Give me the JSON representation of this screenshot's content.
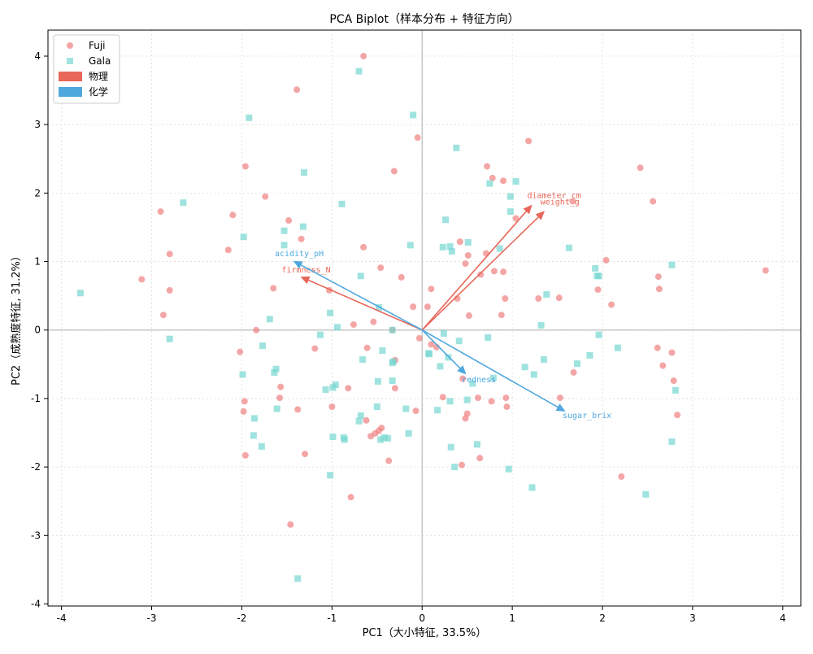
{
  "chart_data": {
    "type": "scatter",
    "title": "PCA Biplot（样本分布 + 特征方向）",
    "xlabel": "PC1（大小特征, 33.5%）",
    "ylabel": "PC2（成熟度特征, 31.2%）",
    "xlim": [
      -4.15,
      4.2
    ],
    "ylim": [
      -4.03,
      4.38
    ],
    "x_ticks": [
      -4,
      -3,
      -2,
      -1,
      0,
      1,
      2,
      3,
      4
    ],
    "y_ticks": [
      -4,
      -3,
      -2,
      -1,
      0,
      1,
      2,
      3,
      4
    ],
    "grid": true,
    "legend_position": "upper left",
    "colors": {
      "fuji": "#f08080",
      "gala": "#76d7d1",
      "physical": "#e8675a",
      "chemical": "#4ea8de",
      "zero_line": "#bbbbbb"
    },
    "legend": [
      {
        "label": "Fuji",
        "kind": "circle",
        "color_key": "fuji"
      },
      {
        "label": "Gala",
        "kind": "square",
        "color_key": "gala"
      },
      {
        "label": "物理",
        "kind": "patch",
        "color_key": "physical"
      },
      {
        "label": "化学",
        "kind": "patch",
        "color_key": "chemical"
      }
    ],
    "series": [
      {
        "name": "Fuji",
        "marker": "circle",
        "color_key": "fuji",
        "points": [
          [
            -0.65,
            4.0
          ],
          [
            -1.39,
            3.51
          ],
          [
            -0.05,
            2.81
          ],
          [
            -0.31,
            2.32
          ],
          [
            -1.96,
            2.39
          ],
          [
            -1.74,
            1.95
          ],
          [
            -2.1,
            1.68
          ],
          [
            -2.9,
            1.73
          ],
          [
            -2.8,
            1.11
          ],
          [
            -2.15,
            1.17
          ],
          [
            -3.11,
            0.74
          ],
          [
            -2.8,
            0.58
          ],
          [
            -2.87,
            0.22
          ],
          [
            -1.84,
            0.0
          ],
          [
            -2.02,
            -0.32
          ],
          [
            -1.97,
            -1.04
          ],
          [
            -1.98,
            -1.19
          ],
          [
            -1.96,
            -1.83
          ],
          [
            -1.46,
            -2.84
          ],
          [
            -1.3,
            -1.81
          ],
          [
            -1.38,
            -1.16
          ],
          [
            -1.57,
            -0.83
          ],
          [
            -1.58,
            -0.99
          ],
          [
            -1.19,
            -0.27
          ],
          [
            -1.34,
            1.33
          ],
          [
            -1.48,
            1.6
          ],
          [
            -1.65,
            0.61
          ],
          [
            -1.03,
            0.58
          ],
          [
            -0.76,
            0.08
          ],
          [
            -0.65,
            1.21
          ],
          [
            -0.46,
            0.91
          ],
          [
            -0.23,
            0.77
          ],
          [
            -0.1,
            0.34
          ],
          [
            0.06,
            0.34
          ],
          [
            0.1,
            0.6
          ],
          [
            -0.54,
            0.12
          ],
          [
            -0.33,
            0.0
          ],
          [
            -0.61,
            -0.26
          ],
          [
            -0.82,
            -0.85
          ],
          [
            -1.0,
            -1.12
          ],
          [
            -0.62,
            -1.32
          ],
          [
            -0.48,
            -1.47
          ],
          [
            -0.52,
            -1.51
          ],
          [
            -0.57,
            -1.55
          ],
          [
            -0.45,
            -1.43
          ],
          [
            -0.37,
            -1.91
          ],
          [
            -0.79,
            -2.44
          ],
          [
            -0.3,
            -0.85
          ],
          [
            -0.3,
            -0.44
          ],
          [
            -0.07,
            -1.18
          ],
          [
            -0.03,
            -0.12
          ],
          [
            0.1,
            -0.21
          ],
          [
            0.16,
            -0.25
          ],
          [
            0.23,
            -0.98
          ],
          [
            0.45,
            -0.71
          ],
          [
            0.5,
            -1.22
          ],
          [
            0.48,
            -1.29
          ],
          [
            0.62,
            -0.99
          ],
          [
            0.44,
            -1.97
          ],
          [
            0.64,
            -1.87
          ],
          [
            0.77,
            -1.04
          ],
          [
            0.93,
            -0.99
          ],
          [
            0.94,
            -1.12
          ],
          [
            0.39,
            0.46
          ],
          [
            0.52,
            0.21
          ],
          [
            0.88,
            0.22
          ],
          [
            0.65,
            0.81
          ],
          [
            0.71,
            1.12
          ],
          [
            0.8,
            0.86
          ],
          [
            0.9,
            0.85
          ],
          [
            0.92,
            0.46
          ],
          [
            0.42,
            1.29
          ],
          [
            0.51,
            1.09
          ],
          [
            0.48,
            0.97
          ],
          [
            0.72,
            2.39
          ],
          [
            0.78,
            2.22
          ],
          [
            0.9,
            2.18
          ],
          [
            1.18,
            2.76
          ],
          [
            1.04,
            1.63
          ],
          [
            1.29,
            0.46
          ],
          [
            1.52,
            0.47
          ],
          [
            1.53,
            -0.99
          ],
          [
            1.68,
            -0.62
          ],
          [
            1.95,
            0.59
          ],
          [
            2.04,
            1.02
          ],
          [
            2.1,
            0.37
          ],
          [
            2.42,
            2.37
          ],
          [
            2.56,
            1.88
          ],
          [
            2.62,
            0.78
          ],
          [
            2.63,
            0.6
          ],
          [
            2.61,
            -0.26
          ],
          [
            2.67,
            -0.52
          ],
          [
            2.77,
            -0.33
          ],
          [
            2.79,
            -0.74
          ],
          [
            2.83,
            -1.24
          ],
          [
            2.21,
            -2.14
          ],
          [
            3.81,
            0.87
          ],
          [
            1.67,
            1.88
          ]
        ]
      },
      {
        "name": "Gala",
        "marker": "square",
        "color_key": "gala",
        "points": [
          [
            -0.7,
            3.78
          ],
          [
            -0.1,
            3.14
          ],
          [
            -1.92,
            3.1
          ],
          [
            -1.31,
            2.3
          ],
          [
            -2.65,
            1.86
          ],
          [
            -0.89,
            1.84
          ],
          [
            -1.53,
            1.45
          ],
          [
            -1.32,
            1.51
          ],
          [
            -1.98,
            1.36
          ],
          [
            -1.53,
            1.24
          ],
          [
            -3.79,
            0.54
          ],
          [
            -2.8,
            -0.13
          ],
          [
            -1.69,
            0.16
          ],
          [
            -1.77,
            -0.23
          ],
          [
            -1.62,
            -0.57
          ],
          [
            -1.64,
            -0.62
          ],
          [
            -1.99,
            -0.65
          ],
          [
            -1.13,
            -0.07
          ],
          [
            -1.02,
            0.25
          ],
          [
            -0.94,
            0.04
          ],
          [
            -0.96,
            -0.8
          ],
          [
            -0.99,
            -0.84
          ],
          [
            -1.07,
            -0.87
          ],
          [
            -1.61,
            -1.15
          ],
          [
            -1.86,
            -1.29
          ],
          [
            -1.87,
            -1.54
          ],
          [
            -1.78,
            -1.7
          ],
          [
            -1.38,
            -3.63
          ],
          [
            -1.02,
            -2.12
          ],
          [
            -0.99,
            -1.56
          ],
          [
            -0.87,
            -1.57
          ],
          [
            -0.86,
            -1.6
          ],
          [
            -0.68,
            -1.25
          ],
          [
            -0.7,
            -1.33
          ],
          [
            -0.42,
            -1.57
          ],
          [
            -0.46,
            -1.6
          ],
          [
            -0.38,
            -1.58
          ],
          [
            -0.5,
            -1.12
          ],
          [
            -0.49,
            -0.75
          ],
          [
            -0.33,
            -0.74
          ],
          [
            -0.33,
            -0.48
          ],
          [
            -0.32,
            -0.46
          ],
          [
            -0.66,
            -0.43
          ],
          [
            -0.44,
            -0.3
          ],
          [
            -0.33,
            0.0
          ],
          [
            -0.48,
            0.33
          ],
          [
            -0.68,
            0.79
          ],
          [
            -0.13,
            1.24
          ],
          [
            -0.18,
            -1.15
          ],
          [
            -0.15,
            -1.51
          ],
          [
            0.07,
            -0.34
          ],
          [
            0.08,
            -0.35
          ],
          [
            0.2,
            -0.53
          ],
          [
            0.24,
            -0.05
          ],
          [
            0.29,
            -0.4
          ],
          [
            0.31,
            -1.04
          ],
          [
            0.17,
            -1.17
          ],
          [
            0.5,
            -1.02
          ],
          [
            0.56,
            -0.78
          ],
          [
            0.41,
            -0.16
          ],
          [
            0.38,
            2.66
          ],
          [
            0.26,
            1.61
          ],
          [
            0.31,
            1.22
          ],
          [
            0.23,
            1.21
          ],
          [
            0.33,
            1.15
          ],
          [
            0.51,
            1.28
          ],
          [
            0.73,
            -0.11
          ],
          [
            0.79,
            -0.7
          ],
          [
            0.61,
            -1.67
          ],
          [
            0.36,
            -2.0
          ],
          [
            0.32,
            -1.71
          ],
          [
            0.96,
            -2.03
          ],
          [
            1.22,
            -2.3
          ],
          [
            1.14,
            -0.54
          ],
          [
            1.24,
            -0.65
          ],
          [
            1.32,
            0.07
          ],
          [
            1.35,
            -0.43
          ],
          [
            1.38,
            0.52
          ],
          [
            1.72,
            -0.49
          ],
          [
            1.86,
            -0.37
          ],
          [
            1.96,
            -0.07
          ],
          [
            2.17,
            -0.26
          ],
          [
            1.63,
            1.2
          ],
          [
            1.92,
            0.9
          ],
          [
            1.94,
            0.79
          ],
          [
            1.96,
            0.79
          ],
          [
            2.77,
            0.95
          ],
          [
            2.81,
            -0.88
          ],
          [
            2.77,
            -1.63
          ],
          [
            2.48,
            -2.4
          ],
          [
            0.86,
            1.19
          ],
          [
            0.75,
            2.14
          ],
          [
            0.98,
            1.95
          ],
          [
            1.04,
            2.17
          ],
          [
            0.98,
            1.73
          ]
        ]
      }
    ],
    "loadings": [
      {
        "label": "diameter_cm",
        "x": 1.22,
        "y": 1.83,
        "group": "physical"
      },
      {
        "label": "weight_g",
        "x": 1.36,
        "y": 1.74,
        "group": "physical"
      },
      {
        "label": "firmness_N",
        "x": -1.35,
        "y": 0.78,
        "group": "physical"
      },
      {
        "label": "acidity_pH",
        "x": -1.43,
        "y": 1.01,
        "group": "chemical"
      },
      {
        "label": "sugar_brix",
        "x": 1.59,
        "y": -1.19,
        "group": "chemical"
      },
      {
        "label": "redness",
        "x": 0.49,
        "y": -0.65,
        "group": "chemical"
      }
    ]
  }
}
